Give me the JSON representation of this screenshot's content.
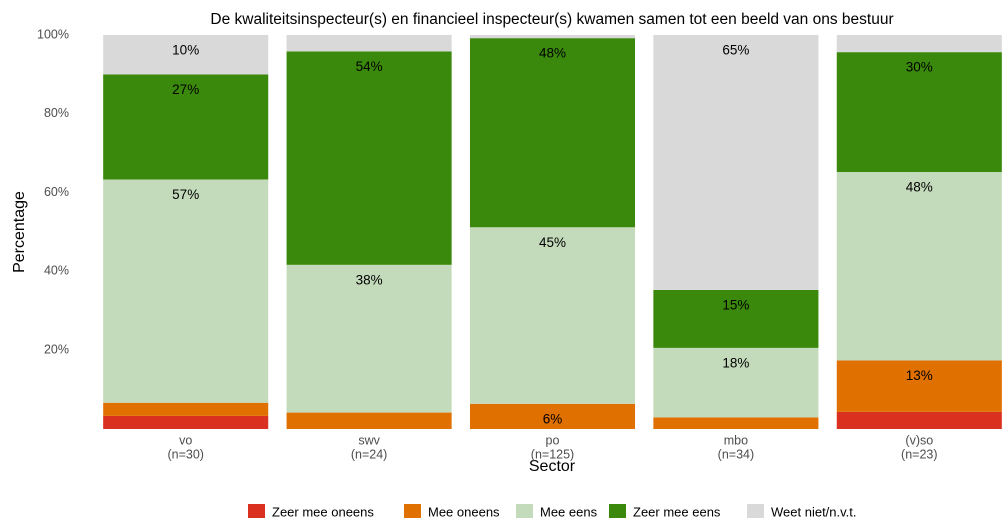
{
  "chart_data": {
    "type": "stacked_bar",
    "title": "De kwaliteitsinspecteur(s) en financieel inspecteur(s) kwamen samen tot een beeld van ons bestuur",
    "x_label": "Sector",
    "y_label": "Percentage",
    "categories": [
      "vo",
      "swv",
      "po",
      "mbo",
      "(v)so"
    ],
    "category_sublabels": [
      "(n=30)",
      "(n=24)",
      "(n=125)",
      "(n=34)",
      "(n=23)"
    ],
    "ylim": [
      0,
      100
    ],
    "yticks": [
      {
        "value": 20,
        "label": "20%"
      },
      {
        "value": 40,
        "label": "40%"
      },
      {
        "value": 60,
        "label": "60%"
      },
      {
        "value": 80,
        "label": "80%"
      },
      {
        "value": 100,
        "label": "100%"
      }
    ],
    "legend_position": "bottom",
    "series": [
      {
        "name": "Zeer mee oneens",
        "color": "#d9301f",
        "values": [
          3.33,
          0,
          0,
          0,
          4.35
        ],
        "value_labels": [
          null,
          null,
          null,
          null,
          null
        ]
      },
      {
        "name": "Mee oneens",
        "color": "#e07000",
        "values": [
          3.33,
          4.17,
          6.4,
          2.94,
          13.04
        ],
        "value_labels": [
          null,
          null,
          "6%",
          null,
          "13%"
        ]
      },
      {
        "name": "Mee eens",
        "color": "#c4dbbb",
        "values": [
          56.67,
          37.5,
          44.8,
          17.65,
          47.83
        ],
        "value_labels": [
          "57%",
          "38%",
          "45%",
          "18%",
          "48%"
        ]
      },
      {
        "name": "Zeer mee eens",
        "color": "#3a890c",
        "values": [
          26.67,
          54.17,
          48,
          14.71,
          30.43
        ],
        "value_labels": [
          "27%",
          "54%",
          "48%",
          "15%",
          "30%"
        ]
      },
      {
        "name": "Weet niet/n.v.t.",
        "color": "#d9d9d9",
        "values": [
          10,
          4.17,
          0.8,
          64.71,
          4.35
        ],
        "value_labels": [
          "10%",
          null,
          null,
          "65%",
          null
        ]
      }
    ]
  }
}
